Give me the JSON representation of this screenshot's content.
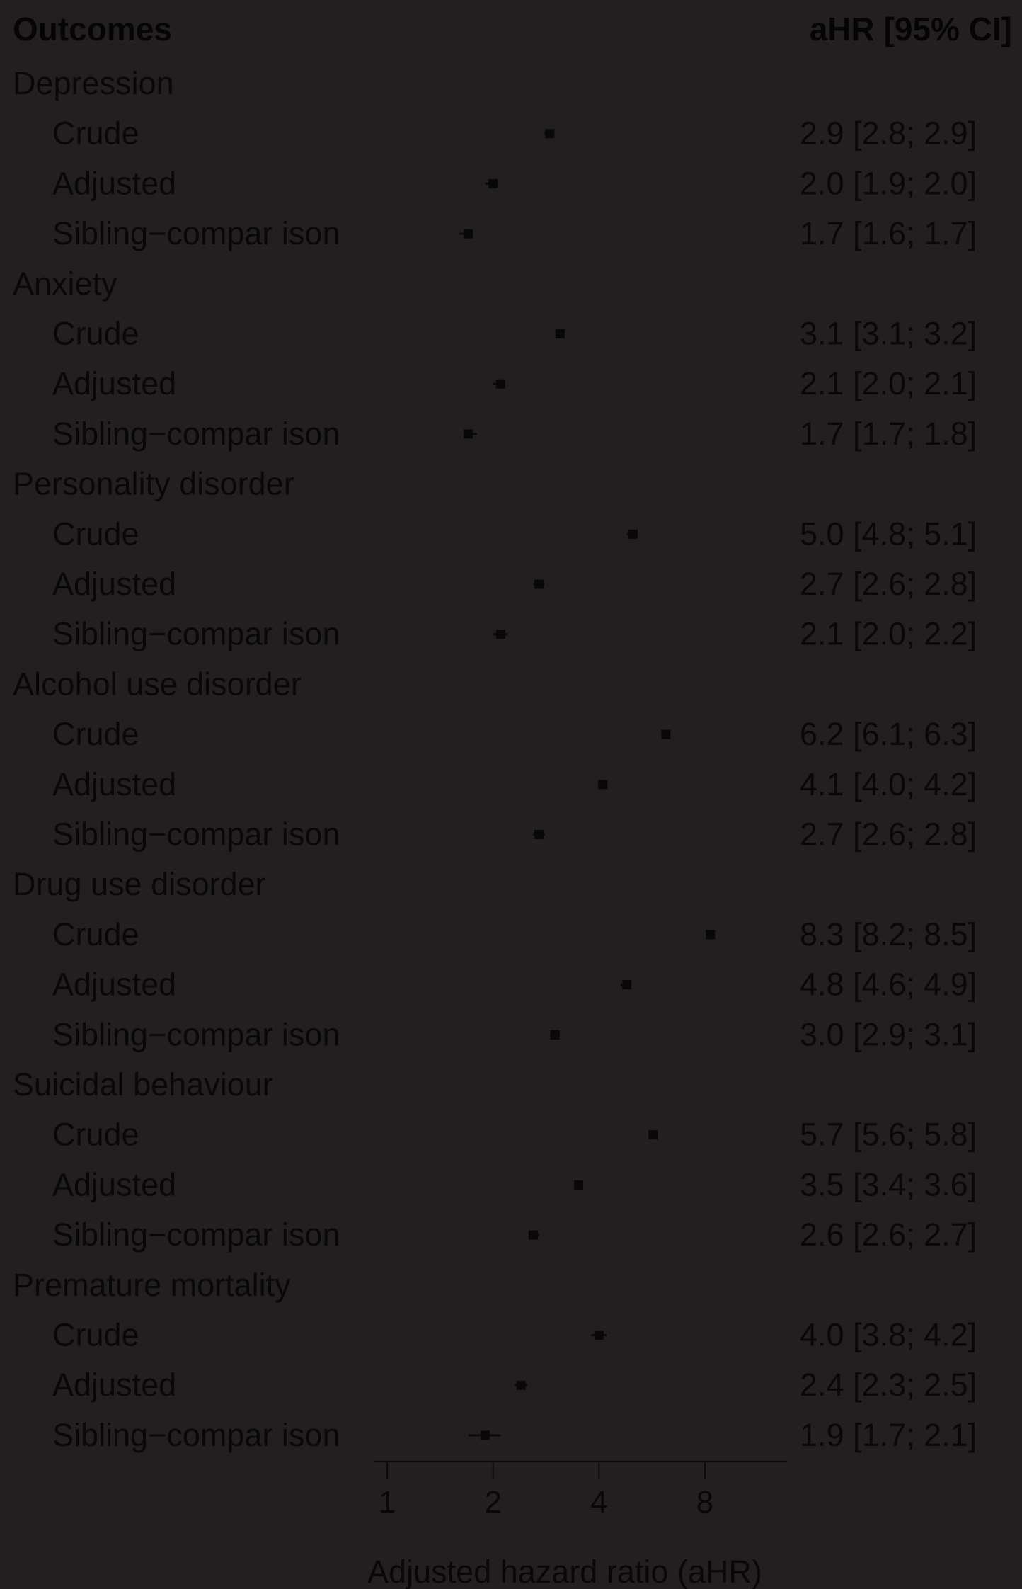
{
  "chart_data": {
    "type": "forest",
    "header": {
      "label_col": "Outcomes",
      "estimate_col": "aHR [95% CI]"
    },
    "x_scale": "log2",
    "xlim": [
      0.915,
      13.7
    ],
    "x_ticks": [
      1,
      2,
      4,
      8
    ],
    "x_tick_labels": [
      "1",
      "2",
      "4",
      "8"
    ],
    "xlabel": "Adjusted hazard ratio (aHR)",
    "colors": {
      "background": "#231f20",
      "ink": "#080808"
    },
    "groups": [
      {
        "name": "Depression",
        "rows": [
          {
            "label": "Crude",
            "hr": 2.9,
            "lo": 2.8,
            "hi": 2.9,
            "text": "2.9 [2.8; 2.9]"
          },
          {
            "label": "Adjusted",
            "hr": 2.0,
            "lo": 1.9,
            "hi": 2.0,
            "text": "2.0 [1.9; 2.0]"
          },
          {
            "label": "Sibling−compar ison",
            "hr": 1.7,
            "lo": 1.6,
            "hi": 1.7,
            "text": "1.7 [1.6; 1.7]"
          }
        ]
      },
      {
        "name": "Anxiety",
        "rows": [
          {
            "label": "Crude",
            "hr": 3.1,
            "lo": 3.1,
            "hi": 3.2,
            "text": "3.1 [3.1; 3.2]"
          },
          {
            "label": "Adjusted",
            "hr": 2.1,
            "lo": 2.0,
            "hi": 2.1,
            "text": "2.1 [2.0; 2.1]"
          },
          {
            "label": "Sibling−compar ison",
            "hr": 1.7,
            "lo": 1.7,
            "hi": 1.8,
            "text": "1.7 [1.7; 1.8]"
          }
        ]
      },
      {
        "name": "Personality disorder",
        "rows": [
          {
            "label": "Crude",
            "hr": 5.0,
            "lo": 4.8,
            "hi": 5.1,
            "text": "5.0 [4.8; 5.1]"
          },
          {
            "label": "Adjusted",
            "hr": 2.7,
            "lo": 2.6,
            "hi": 2.8,
            "text": "2.7 [2.6; 2.8]"
          },
          {
            "label": "Sibling−compar ison",
            "hr": 2.1,
            "lo": 2.0,
            "hi": 2.2,
            "text": "2.1 [2.0; 2.2]"
          }
        ]
      },
      {
        "name": "Alcohol use disorder",
        "rows": [
          {
            "label": "Crude",
            "hr": 6.2,
            "lo": 6.1,
            "hi": 6.3,
            "text": "6.2 [6.1; 6.3]"
          },
          {
            "label": "Adjusted",
            "hr": 4.1,
            "lo": 4.0,
            "hi": 4.2,
            "text": "4.1 [4.0; 4.2]"
          },
          {
            "label": "Sibling−compar ison",
            "hr": 2.7,
            "lo": 2.6,
            "hi": 2.8,
            "text": "2.7 [2.6; 2.8]"
          }
        ]
      },
      {
        "name": "Drug use disorder",
        "rows": [
          {
            "label": "Crude",
            "hr": 8.3,
            "lo": 8.2,
            "hi": 8.5,
            "text": "8.3 [8.2; 8.5]"
          },
          {
            "label": "Adjusted",
            "hr": 4.8,
            "lo": 4.6,
            "hi": 4.9,
            "text": "4.8 [4.6; 4.9]"
          },
          {
            "label": "Sibling−compar ison",
            "hr": 3.0,
            "lo": 2.9,
            "hi": 3.1,
            "text": "3.0 [2.9; 3.1]"
          }
        ]
      },
      {
        "name": "Suicidal behaviour",
        "rows": [
          {
            "label": "Crude",
            "hr": 5.7,
            "lo": 5.6,
            "hi": 5.8,
            "text": "5.7 [5.6; 5.8]"
          },
          {
            "label": "Adjusted",
            "hr": 3.5,
            "lo": 3.4,
            "hi": 3.6,
            "text": "3.5 [3.4; 3.6]"
          },
          {
            "label": "Sibling−compar ison",
            "hr": 2.6,
            "lo": 2.6,
            "hi": 2.7,
            "text": "2.6 [2.6; 2.7]"
          }
        ]
      },
      {
        "name": "Premature mortality",
        "rows": [
          {
            "label": "Crude",
            "hr": 4.0,
            "lo": 3.8,
            "hi": 4.2,
            "text": "4.0 [3.8; 4.2]"
          },
          {
            "label": "Adjusted",
            "hr": 2.4,
            "lo": 2.3,
            "hi": 2.5,
            "text": "2.4 [2.3; 2.5]"
          },
          {
            "label": "Sibling−compar ison",
            "hr": 1.9,
            "lo": 1.7,
            "hi": 2.1,
            "text": "1.9 [1.7; 2.1]"
          }
        ]
      }
    ]
  }
}
